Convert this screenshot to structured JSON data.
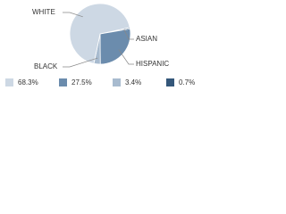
{
  "chart_data": {
    "type": "pie",
    "categories": [
      "WHITE",
      "HISPANIC",
      "BLACK",
      "ASIAN"
    ],
    "values": [
      68.3,
      27.5,
      3.4,
      0.7
    ],
    "value_labels": [
      "68.3%",
      "27.5%",
      "3.4%",
      "0.7%"
    ],
    "colors": [
      "#cdd8e4",
      "#6b8cad",
      "#a8bbcf",
      "#34577a"
    ]
  }
}
